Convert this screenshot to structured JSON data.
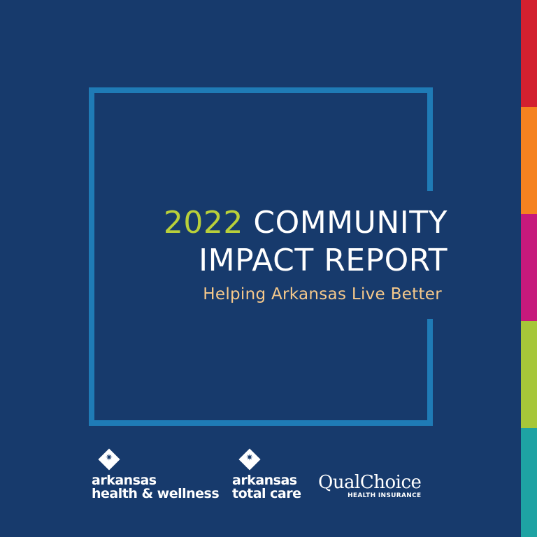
{
  "cover": {
    "title_year": "2022",
    "title_line1_rest": "COMMUNITY",
    "title_line2": "IMPACT REPORT",
    "subtitle": "Helping Arkansas Live Better"
  },
  "logos": {
    "ahw": {
      "line1": "arkansas",
      "line2": "health & wellness",
      "icon": "star-diamond-icon"
    },
    "atc": {
      "line1": "arkansas",
      "line2": "total care",
      "icon": "star-diamond-icon"
    },
    "qualchoice": {
      "name": "QualChoice",
      "tagline": "HEALTH INSURANCE"
    }
  },
  "colors": {
    "background": "#173a6c",
    "frame": "#1f7bb6",
    "year": "#b9d03a",
    "subtitle": "#f6c98b",
    "stripes": [
      "#d3202f",
      "#f58220",
      "#c7197c",
      "#a6c739",
      "#1ea3a3"
    ]
  }
}
